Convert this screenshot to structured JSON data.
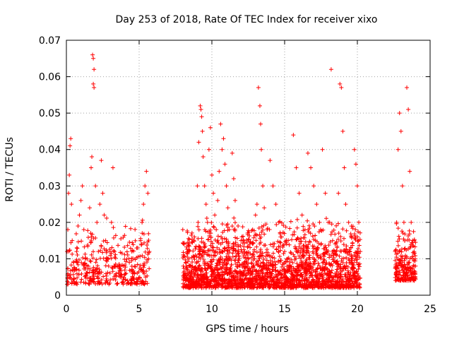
{
  "chart_data": {
    "type": "scatter",
    "title": "Day 253 of 2018, Rate Of TEC Index for receiver xixo",
    "xlabel": "GPS time / hours",
    "ylabel": "ROTI / TECUs",
    "xlim": [
      0,
      25
    ],
    "ylim": [
      0,
      0.07
    ],
    "x_ticks": [
      0,
      5,
      10,
      15,
      20,
      25
    ],
    "y_ticks": [
      0,
      0.01,
      0.02,
      0.03,
      0.04,
      0.05,
      0.06,
      0.07
    ],
    "x_tick_labels": [
      "0",
      "5",
      "10",
      "15",
      "20",
      "25"
    ],
    "y_tick_labels": [
      "0",
      "0.01",
      "0.02",
      "0.03",
      "0.04",
      "0.05",
      "0.06",
      "0.07"
    ],
    "grid": true,
    "marker": "plus",
    "color": "#ff0000",
    "series": [
      {
        "points": [
          [
            0.05,
            0.012
          ],
          [
            0.1,
            0.018
          ],
          [
            0.15,
            0.028
          ],
          [
            0.2,
            0.033
          ],
          [
            0.25,
            0.041
          ],
          [
            0.3,
            0.043
          ],
          [
            0.35,
            0.025
          ],
          [
            0.4,
            0.015
          ],
          [
            0.5,
            0.009
          ],
          [
            0.6,
            0.007
          ],
          [
            0.7,
            0.012
          ],
          [
            0.8,
            0.019
          ],
          [
            0.9,
            0.022
          ],
          [
            1.0,
            0.026
          ],
          [
            1.1,
            0.03
          ],
          [
            1.2,
            0.018
          ],
          [
            1.3,
            0.01
          ],
          [
            1.4,
            0.006
          ],
          [
            1.5,
            0.008
          ],
          [
            1.6,
            0.024
          ],
          [
            1.7,
            0.035
          ],
          [
            1.75,
            0.038
          ],
          [
            1.8,
            0.066
          ],
          [
            1.85,
            0.065
          ],
          [
            1.9,
            0.062
          ],
          [
            1.85,
            0.058
          ],
          [
            1.9,
            0.057
          ],
          [
            2.0,
            0.03
          ],
          [
            2.1,
            0.02
          ],
          [
            2.2,
            0.012
          ],
          [
            2.3,
            0.025
          ],
          [
            2.4,
            0.037
          ],
          [
            2.5,
            0.028
          ],
          [
            2.6,
            0.022
          ],
          [
            2.7,
            0.015
          ],
          [
            2.8,
            0.01
          ],
          [
            2.9,
            0.008
          ],
          [
            3.0,
            0.012
          ],
          [
            3.1,
            0.02
          ],
          [
            3.2,
            0.035
          ],
          [
            3.3,
            0.012
          ],
          [
            3.5,
            0.008
          ],
          [
            3.7,
            0.005
          ],
          [
            3.9,
            0.003
          ],
          [
            4.1,
            0.006
          ],
          [
            4.3,
            0.01
          ],
          [
            4.5,
            0.012
          ],
          [
            4.7,
            0.008
          ],
          [
            4.9,
            0.013
          ],
          [
            5.1,
            0.015
          ],
          [
            5.2,
            0.02
          ],
          [
            5.3,
            0.025
          ],
          [
            5.4,
            0.03
          ],
          [
            5.5,
            0.034
          ],
          [
            5.6,
            0.028
          ],
          [
            5.7,
            0.012
          ],
          [
            8.0,
            0.018
          ],
          [
            8.1,
            0.014
          ],
          [
            8.2,
            0.009
          ],
          [
            8.3,
            0.007
          ],
          [
            8.4,
            0.012
          ],
          [
            8.5,
            0.008
          ],
          [
            8.6,
            0.006
          ],
          [
            8.8,
            0.016
          ],
          [
            9.0,
            0.03
          ],
          [
            9.1,
            0.042
          ],
          [
            9.2,
            0.052
          ],
          [
            9.25,
            0.051
          ],
          [
            9.3,
            0.049
          ],
          [
            9.35,
            0.045
          ],
          [
            9.4,
            0.038
          ],
          [
            9.5,
            0.03
          ],
          [
            9.6,
            0.025
          ],
          [
            9.7,
            0.02
          ],
          [
            9.8,
            0.04
          ],
          [
            9.9,
            0.046
          ],
          [
            10.0,
            0.033
          ],
          [
            10.1,
            0.028
          ],
          [
            10.2,
            0.022
          ],
          [
            10.3,
            0.018
          ],
          [
            10.4,
            0.026
          ],
          [
            10.5,
            0.034
          ],
          [
            10.6,
            0.047
          ],
          [
            10.7,
            0.04
          ],
          [
            10.8,
            0.043
          ],
          [
            10.9,
            0.036
          ],
          [
            11.0,
            0.03
          ],
          [
            11.1,
            0.024
          ],
          [
            11.2,
            0.018
          ],
          [
            11.4,
            0.039
          ],
          [
            11.5,
            0.032
          ],
          [
            11.6,
            0.026
          ],
          [
            11.8,
            0.019
          ],
          [
            12.0,
            0.015
          ],
          [
            12.2,
            0.011
          ],
          [
            12.4,
            0.009
          ],
          [
            12.6,
            0.014
          ],
          [
            12.8,
            0.018
          ],
          [
            13.0,
            0.022
          ],
          [
            13.1,
            0.025
          ],
          [
            13.2,
            0.057
          ],
          [
            13.3,
            0.052
          ],
          [
            13.35,
            0.047
          ],
          [
            13.4,
            0.04
          ],
          [
            13.5,
            0.03
          ],
          [
            13.6,
            0.024
          ],
          [
            13.8,
            0.018
          ],
          [
            14.0,
            0.037
          ],
          [
            14.2,
            0.03
          ],
          [
            14.4,
            0.025
          ],
          [
            14.6,
            0.02
          ],
          [
            14.8,
            0.016
          ],
          [
            15.0,
            0.012
          ],
          [
            15.2,
            0.01
          ],
          [
            15.4,
            0.008
          ],
          [
            15.6,
            0.044
          ],
          [
            15.8,
            0.035
          ],
          [
            16.0,
            0.028
          ],
          [
            16.2,
            0.022
          ],
          [
            16.4,
            0.018
          ],
          [
            16.6,
            0.039
          ],
          [
            16.8,
            0.035
          ],
          [
            17.0,
            0.03
          ],
          [
            17.2,
            0.025
          ],
          [
            17.4,
            0.02
          ],
          [
            17.6,
            0.04
          ],
          [
            17.8,
            0.028
          ],
          [
            18.0,
            0.02
          ],
          [
            18.2,
            0.062
          ],
          [
            18.3,
            0.015
          ],
          [
            18.5,
            0.012
          ],
          [
            18.7,
            0.028
          ],
          [
            18.8,
            0.058
          ],
          [
            18.9,
            0.057
          ],
          [
            19.0,
            0.045
          ],
          [
            19.1,
            0.035
          ],
          [
            19.2,
            0.025
          ],
          [
            19.4,
            0.02
          ],
          [
            19.6,
            0.016
          ],
          [
            19.8,
            0.04
          ],
          [
            19.9,
            0.036
          ],
          [
            20.0,
            0.03
          ],
          [
            20.1,
            0.02
          ],
          [
            20.2,
            0.012
          ],
          [
            22.6,
            0.012
          ],
          [
            22.7,
            0.02
          ],
          [
            22.8,
            0.04
          ],
          [
            22.9,
            0.05
          ],
          [
            23.0,
            0.045
          ],
          [
            23.1,
            0.03
          ],
          [
            23.2,
            0.02
          ],
          [
            23.4,
            0.057
          ],
          [
            23.5,
            0.051
          ],
          [
            23.6,
            0.034
          ],
          [
            23.7,
            0.02
          ],
          [
            23.8,
            0.015
          ],
          [
            23.9,
            0.012
          ],
          [
            24.0,
            0.008
          ]
        ],
        "dense_bands": [
          {
            "x0": 0.05,
            "x1": 5.7,
            "ymin": 0.003,
            "ymax": 0.022,
            "count": 380
          },
          {
            "x0": 8.0,
            "x1": 20.2,
            "ymin": 0.002,
            "ymax": 0.022,
            "count": 2200
          },
          {
            "x0": 22.6,
            "x1": 24.0,
            "ymin": 0.004,
            "ymax": 0.02,
            "count": 220
          }
        ]
      }
    ]
  }
}
